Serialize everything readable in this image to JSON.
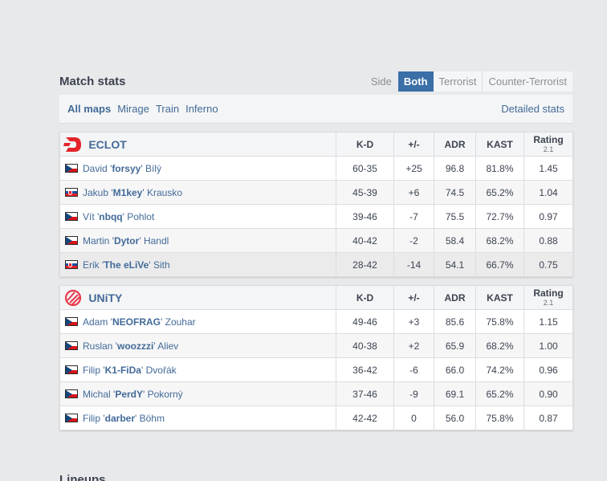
{
  "header": {
    "title": "Match stats",
    "side_label": "Side",
    "sides": [
      "Both",
      "Terrorist",
      "Counter-Terrorist"
    ]
  },
  "maps": {
    "items": [
      "All maps",
      "Mirage",
      "Train",
      "Inferno"
    ],
    "detailed_label": "Detailed stats"
  },
  "columns": {
    "kd": "K-D",
    "pm": "+/-",
    "adr": "ADR",
    "kast": "KAST",
    "rating": "Rating",
    "rating_sub": "2.1"
  },
  "teams": [
    {
      "name": "ECLOT",
      "logo_color": "#e3232b",
      "players": [
        {
          "first": "David",
          "nick": "forsyy",
          "last": "Bílý",
          "flag": "cz",
          "kd": "60-35",
          "pm": "+25",
          "adr": "96.8",
          "kast": "81.8%",
          "rating": "1.45"
        },
        {
          "first": "Jakub",
          "nick": "M1key",
          "last": "Krausko",
          "flag": "sk",
          "kd": "45-39",
          "pm": "+6",
          "adr": "74.5",
          "kast": "65.2%",
          "rating": "1.04"
        },
        {
          "first": "Vít",
          "nick": "nbqq",
          "last": "Pohlot",
          "flag": "cz",
          "kd": "39-46",
          "pm": "-7",
          "adr": "75.5",
          "kast": "72.7%",
          "rating": "0.97"
        },
        {
          "first": "Martin",
          "nick": "Dytor",
          "last": "Handl",
          "flag": "cz",
          "kd": "40-42",
          "pm": "-2",
          "adr": "58.4",
          "kast": "68.2%",
          "rating": "0.88"
        },
        {
          "first": "Erik",
          "nick": "The eLiVe",
          "last": "Sith",
          "flag": "sk",
          "kd": "28-42",
          "pm": "-14",
          "adr": "54.1",
          "kast": "66.7%",
          "rating": "0.75"
        }
      ]
    },
    {
      "name": "UNiTY",
      "logo_color": "#e8394b",
      "players": [
        {
          "first": "Adam",
          "nick": "NEOFRAG",
          "last": "Zouhar",
          "flag": "cz",
          "kd": "49-46",
          "pm": "+3",
          "adr": "85.6",
          "kast": "75.8%",
          "rating": "1.15"
        },
        {
          "first": "Ruslan",
          "nick": "woozzzi",
          "last": "Aliev",
          "flag": "cz",
          "kd": "40-38",
          "pm": "+2",
          "adr": "65.9",
          "kast": "68.2%",
          "rating": "1.00"
        },
        {
          "first": "Filip",
          "nick": "K1-FiDa",
          "last": "Dvořák",
          "flag": "cz",
          "kd": "36-42",
          "pm": "-6",
          "adr": "66.0",
          "kast": "74.2%",
          "rating": "0.96"
        },
        {
          "first": "Michal",
          "nick": "PerdY",
          "last": "Pokorný",
          "flag": "cz",
          "kd": "37-46",
          "pm": "-9",
          "adr": "69.1",
          "kast": "65.2%",
          "rating": "0.90"
        },
        {
          "first": "Filip",
          "nick": "darber",
          "last": "Böhm",
          "flag": "cz",
          "kd": "42-42",
          "pm": "0",
          "adr": "56.0",
          "kast": "75.8%",
          "rating": "0.87"
        }
      ]
    }
  ],
  "colors": {
    "accent": "#3a6fa7",
    "link": "#426a98",
    "positive": "#2e9e2e",
    "negative": "#c9302c"
  },
  "footer": {
    "next_section": "Lineups"
  }
}
